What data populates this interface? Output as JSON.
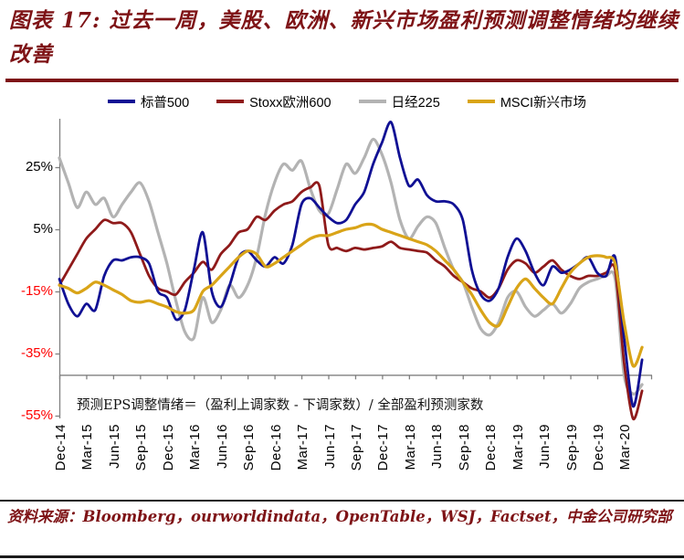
{
  "title": "图表 17:  过去一周，美股、欧洲、新兴市场盈利预测调整情绪均继续改善",
  "annotation": "预测EPS调整情绪＝（盈利上调家数 - 下调家数）/ 全部盈利预测家数",
  "source": "资料来源：Bloomberg，ourworldindata，OpenTable，WSJ，Factset，中金公司研究部",
  "colors": {
    "title_maroon": "#7e1316",
    "negative_tick_red": "#ff0000",
    "axis_gray": "#808080",
    "sp500_navy": "#101094",
    "stoxx_darkred": "#8f1a1a",
    "nikkei_gray": "#b3b3b3",
    "msci_gold": "#d9a418"
  },
  "chart_data": {
    "type": "line",
    "title": "",
    "x_monthly_start": "Dec-14",
    "x_labels": [
      "Dec-14",
      "Mar-15",
      "Jun-15",
      "Sep-15",
      "Dec-15",
      "Mar-16",
      "Jun-16",
      "Sep-16",
      "Dec-16",
      "Mar-17",
      "Jun-17",
      "Sep-17",
      "Dec-17",
      "Mar-18",
      "Jun-18",
      "Sep-18",
      "Dec-18",
      "Mar-19",
      "Jun-19",
      "Sep-19",
      "Dec-19",
      "Mar-20"
    ],
    "ylabel": "预测EPS调整情绪 (%)",
    "ylim": [
      -55,
      40
    ],
    "y_ticks": [
      {
        "label": "25%",
        "value": 25,
        "color": "#000000"
      },
      {
        "label": "5%",
        "value": 5,
        "color": "#000000"
      },
      {
        "label": "-15%",
        "value": -15,
        "color": "#ff0000"
      },
      {
        "label": "-35%",
        "value": -35,
        "color": "#ff0000"
      },
      {
        "label": "-55%",
        "value": -55,
        "color": "#ff0000"
      }
    ],
    "x_axis_cross_value": -42,
    "grid": false,
    "legend_position": "top",
    "series": [
      {
        "name": "标普500",
        "color": "#101094",
        "width": 2.8,
        "values": [
          -11,
          -19,
          -23,
          -19,
          -21,
          -10,
          -5,
          -5,
          -4,
          -4,
          -6,
          -15,
          -17,
          -24,
          -21,
          -8,
          4,
          -15,
          -20,
          -13,
          -4,
          -2,
          -5,
          -7,
          -4,
          -6,
          0,
          13,
          15,
          12,
          9,
          7,
          8,
          13,
          17,
          26,
          33,
          39.5,
          28,
          19,
          21,
          16,
          14,
          14,
          13,
          8,
          -8,
          -16,
          -18,
          -14,
          -4,
          2,
          -2,
          -9,
          -13,
          -7,
          -9,
          -8,
          -6,
          -4,
          -9,
          -10,
          -4,
          -30,
          -52,
          -37
        ]
      },
      {
        "name": "Stoxx欧洲600",
        "color": "#8f1a1a",
        "width": 2.8,
        "values": [
          -13,
          -8,
          -3,
          2,
          5,
          8,
          7,
          7,
          4,
          -3,
          -10,
          -14,
          -15,
          -16,
          -12,
          -9,
          -5.5,
          -8,
          -3,
          0,
          4,
          5,
          9,
          8,
          11,
          13,
          14,
          17,
          18.5,
          19,
          0,
          -1,
          -2,
          -1,
          -1.5,
          -1,
          -0.5,
          1,
          -1,
          -1.5,
          -2,
          -2.5,
          -5,
          -7,
          -10,
          -12,
          -14,
          -15,
          -17,
          -14,
          -8,
          -5,
          -6,
          -9,
          -7,
          -5,
          -8,
          -10,
          -11,
          -10,
          -10,
          -9,
          -8,
          -38,
          -56,
          -47
        ]
      },
      {
        "name": "日经225",
        "color": "#b3b3b3",
        "width": 3.2,
        "values": [
          28,
          20,
          12,
          17,
          13,
          15,
          9,
          13,
          17,
          20,
          14,
          4,
          -6,
          -18,
          -28,
          -30,
          -17,
          -25,
          -21,
          -13,
          -17,
          -13,
          -4,
          10,
          20,
          26,
          24,
          27,
          18,
          11,
          10,
          18,
          26,
          23,
          28,
          34,
          29,
          20,
          8,
          2,
          6,
          9,
          7,
          -1,
          -8,
          -12,
          -20,
          -27,
          -29,
          -25,
          -17,
          -15,
          -20,
          -23,
          -21,
          -19,
          -22,
          -19,
          -14,
          -12,
          -11,
          -10,
          -11,
          -42,
          -48,
          -45
        ]
      },
      {
        "name": "MSCI新兴市场",
        "color": "#d9a418",
        "width": 3.2,
        "values": [
          -13,
          -14,
          -15.5,
          -14,
          -12,
          -13,
          -14.5,
          -16,
          -18,
          -18.5,
          -18,
          -19,
          -20,
          -21.5,
          -22,
          -21,
          -15,
          -13,
          -10,
          -7,
          -4,
          -2,
          -3,
          -7,
          -6,
          -4,
          -2,
          0,
          2,
          3,
          3,
          4,
          5,
          5.5,
          6.5,
          6.5,
          5,
          4,
          3,
          2,
          1,
          0,
          -2,
          -5,
          -8,
          -12,
          -16,
          -21,
          -25,
          -26,
          -20,
          -14,
          -11,
          -14,
          -17,
          -19,
          -14,
          -9,
          -6,
          -4,
          -3.5,
          -4,
          -6,
          -25,
          -39,
          -33
        ]
      }
    ]
  }
}
